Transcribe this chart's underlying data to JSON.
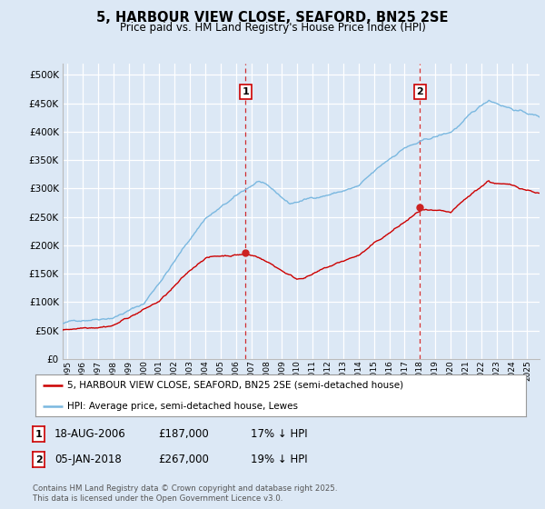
{
  "title": "5, HARBOUR VIEW CLOSE, SEAFORD, BN25 2SE",
  "subtitle": "Price paid vs. HM Land Registry's House Price Index (HPI)",
  "ylim": [
    0,
    520000
  ],
  "yticks": [
    0,
    50000,
    100000,
    150000,
    200000,
    250000,
    300000,
    350000,
    400000,
    450000,
    500000
  ],
  "xlim_start": 1994.7,
  "xlim_end": 2025.8,
  "background_color": "#dce8f5",
  "plot_bg_color": "#dce8f5",
  "grid_color": "#ffffff",
  "hpi_color": "#7ab8e0",
  "price_color": "#cc0000",
  "vline_color": "#cc0000",
  "marker1_x": 2006.63,
  "marker1_y": 187000,
  "marker1_label": "1",
  "marker1_date": "18-AUG-2006",
  "marker1_price": "£187,000",
  "marker1_note": "17% ↓ HPI",
  "marker2_x": 2018.01,
  "marker2_y": 267000,
  "marker2_label": "2",
  "marker2_date": "05-JAN-2018",
  "marker2_price": "£267,000",
  "marker2_note": "19% ↓ HPI",
  "legend_line1": "5, HARBOUR VIEW CLOSE, SEAFORD, BN25 2SE (semi-detached house)",
  "legend_line2": "HPI: Average price, semi-detached house, Lewes",
  "footnote": "Contains HM Land Registry data © Crown copyright and database right 2025.\nThis data is licensed under the Open Government Licence v3.0."
}
